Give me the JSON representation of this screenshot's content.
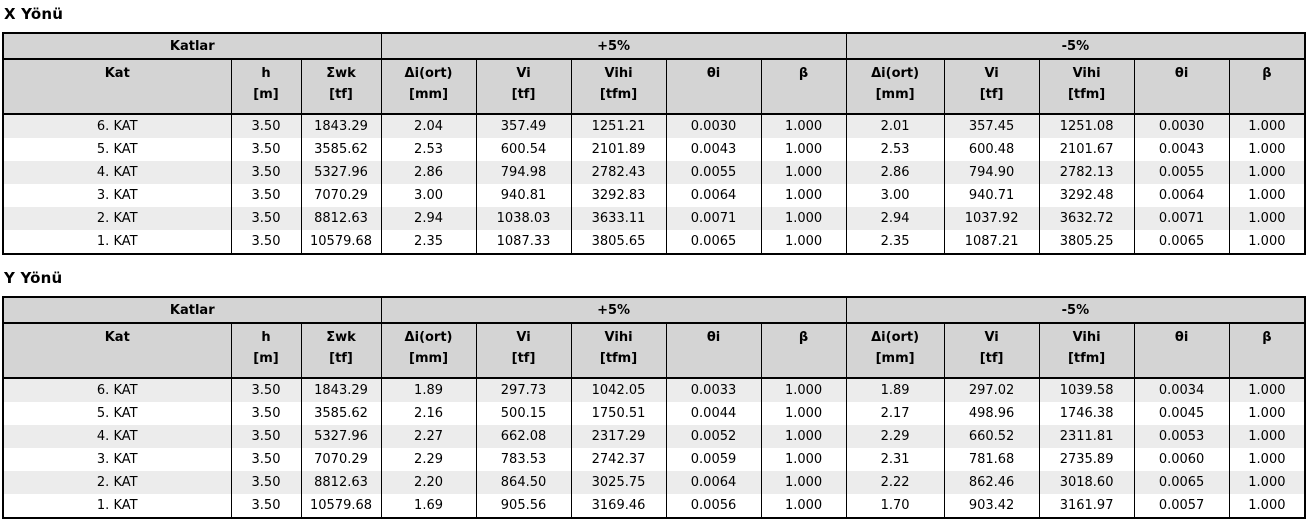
{
  "colors": {
    "header_background": "#d4d4d4",
    "row_stripe": "#ececec",
    "row_plain": "#ffffff",
    "border": "#000000",
    "text": "#000000"
  },
  "sections": [
    {
      "title": "X Yönü",
      "group_headers": [
        {
          "label": "Katlar",
          "span": 3
        },
        {
          "label": "+5%",
          "span": 5
        },
        {
          "label": "-5%",
          "span": 5
        }
      ],
      "columns": [
        {
          "name": "Kat",
          "unit": ""
        },
        {
          "name": "h",
          "unit": "[m]"
        },
        {
          "name": "Σwk",
          "unit": "[tf]"
        },
        {
          "name": "Δi(ort)",
          "unit": "[mm]"
        },
        {
          "name": "Vi",
          "unit": "[tf]"
        },
        {
          "name": "Vihi",
          "unit": "[tfm]"
        },
        {
          "name": "θi",
          "unit": ""
        },
        {
          "name": "β",
          "unit": ""
        },
        {
          "name": "Δi(ort)",
          "unit": "[mm]"
        },
        {
          "name": "Vi",
          "unit": "[tf]"
        },
        {
          "name": "Vihi",
          "unit": "[tfm]"
        },
        {
          "name": "θi",
          "unit": ""
        },
        {
          "name": "β",
          "unit": ""
        }
      ],
      "rows": [
        [
          "6. KAT",
          "3.50",
          "1843.29",
          "2.04",
          "357.49",
          "1251.21",
          "0.0030",
          "1.000",
          "2.01",
          "357.45",
          "1251.08",
          "0.0030",
          "1.000"
        ],
        [
          "5. KAT",
          "3.50",
          "3585.62",
          "2.53",
          "600.54",
          "2101.89",
          "0.0043",
          "1.000",
          "2.53",
          "600.48",
          "2101.67",
          "0.0043",
          "1.000"
        ],
        [
          "4. KAT",
          "3.50",
          "5327.96",
          "2.86",
          "794.98",
          "2782.43",
          "0.0055",
          "1.000",
          "2.86",
          "794.90",
          "2782.13",
          "0.0055",
          "1.000"
        ],
        [
          "3. KAT",
          "3.50",
          "7070.29",
          "3.00",
          "940.81",
          "3292.83",
          "0.0064",
          "1.000",
          "3.00",
          "940.71",
          "3292.48",
          "0.0064",
          "1.000"
        ],
        [
          "2. KAT",
          "3.50",
          "8812.63",
          "2.94",
          "1038.03",
          "3633.11",
          "0.0071",
          "1.000",
          "2.94",
          "1037.92",
          "3632.72",
          "0.0071",
          "1.000"
        ],
        [
          "1. KAT",
          "3.50",
          "10579.68",
          "2.35",
          "1087.33",
          "3805.65",
          "0.0065",
          "1.000",
          "2.35",
          "1087.21",
          "3805.25",
          "0.0065",
          "1.000"
        ]
      ]
    },
    {
      "title": "Y Yönü",
      "group_headers": [
        {
          "label": "Katlar",
          "span": 3
        },
        {
          "label": "+5%",
          "span": 5
        },
        {
          "label": "-5%",
          "span": 5
        }
      ],
      "columns": [
        {
          "name": "Kat",
          "unit": ""
        },
        {
          "name": "h",
          "unit": "[m]"
        },
        {
          "name": "Σwk",
          "unit": "[tf]"
        },
        {
          "name": "Δi(ort)",
          "unit": "[mm]"
        },
        {
          "name": "Vi",
          "unit": "[tf]"
        },
        {
          "name": "Vihi",
          "unit": "[tfm]"
        },
        {
          "name": "θi",
          "unit": ""
        },
        {
          "name": "β",
          "unit": ""
        },
        {
          "name": "Δi(ort)",
          "unit": "[mm]"
        },
        {
          "name": "Vi",
          "unit": "[tf]"
        },
        {
          "name": "Vihi",
          "unit": "[tfm]"
        },
        {
          "name": "θi",
          "unit": ""
        },
        {
          "name": "β",
          "unit": ""
        }
      ],
      "rows": [
        [
          "6. KAT",
          "3.50",
          "1843.29",
          "1.89",
          "297.73",
          "1042.05",
          "0.0033",
          "1.000",
          "1.89",
          "297.02",
          "1039.58",
          "0.0034",
          "1.000"
        ],
        [
          "5. KAT",
          "3.50",
          "3585.62",
          "2.16",
          "500.15",
          "1750.51",
          "0.0044",
          "1.000",
          "2.17",
          "498.96",
          "1746.38",
          "0.0045",
          "1.000"
        ],
        [
          "4. KAT",
          "3.50",
          "5327.96",
          "2.27",
          "662.08",
          "2317.29",
          "0.0052",
          "1.000",
          "2.29",
          "660.52",
          "2311.81",
          "0.0053",
          "1.000"
        ],
        [
          "3. KAT",
          "3.50",
          "7070.29",
          "2.29",
          "783.53",
          "2742.37",
          "0.0059",
          "1.000",
          "2.31",
          "781.68",
          "2735.89",
          "0.0060",
          "1.000"
        ],
        [
          "2. KAT",
          "3.50",
          "8812.63",
          "2.20",
          "864.50",
          "3025.75",
          "0.0064",
          "1.000",
          "2.22",
          "862.46",
          "3018.60",
          "0.0065",
          "1.000"
        ],
        [
          "1. KAT",
          "3.50",
          "10579.68",
          "1.69",
          "905.56",
          "3169.46",
          "0.0056",
          "1.000",
          "1.70",
          "903.42",
          "3161.97",
          "0.0057",
          "1.000"
        ]
      ]
    }
  ]
}
